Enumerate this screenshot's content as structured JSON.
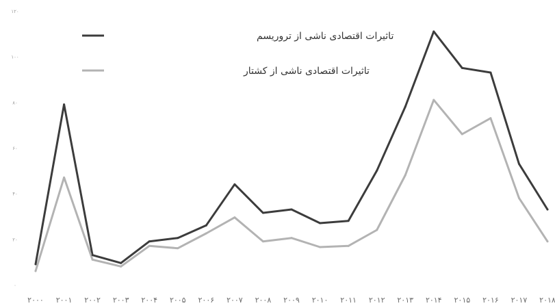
{
  "chart_data": {
    "type": "line",
    "title": "",
    "xlabel": "",
    "ylabel": "",
    "categories": [
      "۲۰۰۰",
      "۲۰۰۱",
      "۲۰۰۲",
      "۲۰۰۳",
      "۲۰۰۴",
      "۲۰۰۵",
      "۲۰۰۶",
      "۲۰۰۷",
      "۲۰۰۸",
      "۲۰۰۹",
      "۲۰۱۰",
      "۲۰۱۱",
      "۲۰۱۲",
      "۲۰۱۳",
      "۲۰۱۴",
      "۲۰۱۵",
      "۲۰۱۶",
      "۲۰۱۷",
      "۲۰۱۸"
    ],
    "y_ticks": [
      "۰",
      "۲۰",
      "۴۰",
      "۶۰",
      "۸۰",
      "۱۰۰",
      "۱۲۰"
    ],
    "ylim": [
      0,
      120
    ],
    "grid": false,
    "legend_position": "top-left",
    "series": [
      {
        "name": "تاثیرات اقتصادی ناشی از تروریسم",
        "color": "#3c3c3c",
        "values": [
          9,
          79,
          13,
          9.5,
          19,
          20.5,
          26,
          44,
          31.5,
          33,
          27,
          28,
          50,
          78,
          111,
          95,
          93,
          53,
          33
        ]
      },
      {
        "name": "تاثیرات اقتصادی ناشی از کشتار",
        "color": "#b3b3b3",
        "values": [
          6,
          47,
          11,
          8,
          17,
          16,
          22.5,
          29.5,
          19,
          20.5,
          16.5,
          17,
          24,
          48,
          81,
          66,
          73,
          38,
          19
        ]
      }
    ]
  }
}
